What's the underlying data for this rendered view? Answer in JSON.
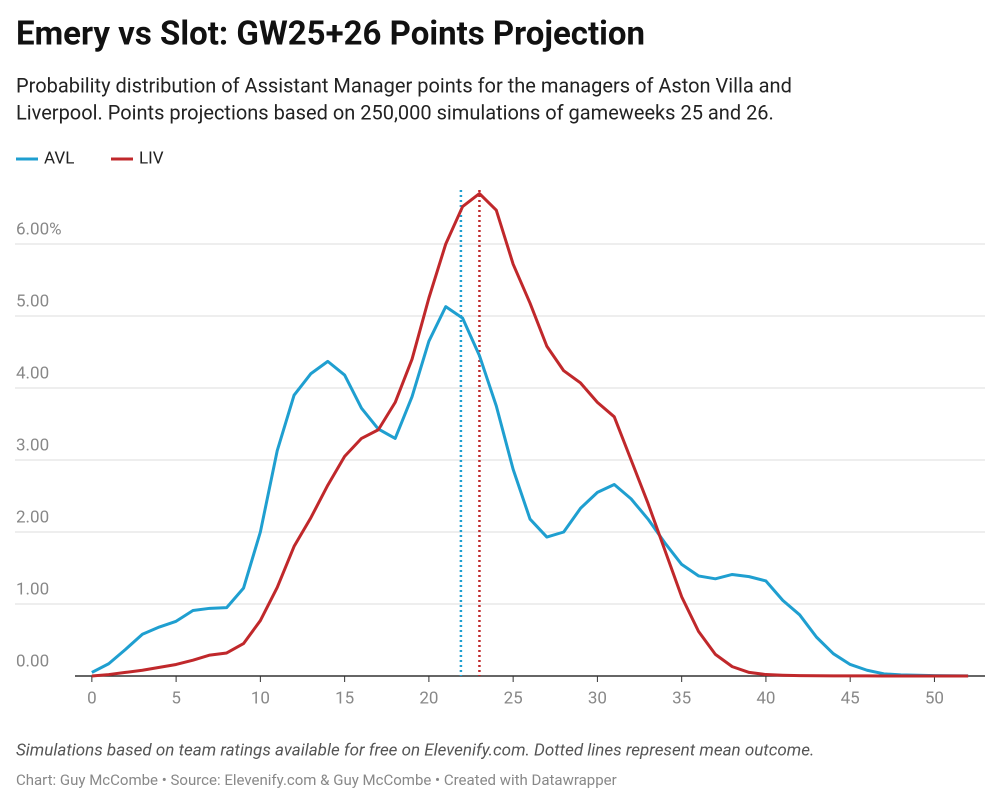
{
  "chart_data": {
    "type": "line",
    "title": "Emery vs Slot: GW25+26 Points Projection",
    "subtitle": [
      "Probability distribution of Assistant Manager points for the managers of Aston Villa and",
      "Liverpool. Points projections based on 250,000 simulations of gameweeks 25 and 26."
    ],
    "notes": "Simulations based on team ratings available for free on Elevenify.com. Dotted lines represent mean outcome.",
    "credits": "Chart: Guy McCombe • Source: Elevenify.com & Guy McCombe • Created with Datawrapper",
    "x": [
      0,
      1,
      2,
      3,
      4,
      5,
      6,
      7,
      8,
      9,
      10,
      11,
      12,
      13,
      14,
      15,
      16,
      17,
      18,
      19,
      20,
      21,
      22,
      23,
      24,
      25,
      26,
      27,
      28,
      29,
      30,
      31,
      32,
      33,
      34,
      35,
      36,
      37,
      38,
      39,
      40,
      41,
      42,
      43,
      44,
      45,
      46,
      47,
      48,
      49,
      50,
      51,
      52
    ],
    "series": [
      {
        "name": "AVL",
        "color": "#1f9fd0",
        "mean": 21.9,
        "values": [
          0.05,
          0.17,
          0.37,
          0.58,
          0.68,
          0.76,
          0.91,
          0.94,
          0.95,
          1.22,
          2.0,
          3.13,
          3.9,
          4.2,
          4.37,
          4.18,
          3.72,
          3.43,
          3.3,
          3.88,
          4.65,
          5.13,
          4.97,
          4.45,
          3.75,
          2.87,
          2.18,
          1.93,
          2.0,
          2.33,
          2.55,
          2.66,
          2.46,
          2.18,
          1.85,
          1.55,
          1.39,
          1.35,
          1.41,
          1.38,
          1.32,
          1.05,
          0.85,
          0.54,
          0.31,
          0.16,
          0.08,
          0.03,
          0.015,
          0.01,
          0.005,
          0.003,
          0.002
        ]
      },
      {
        "name": "LIV",
        "color": "#c0282b",
        "mean": 23.0,
        "values": [
          0.0,
          0.02,
          0.05,
          0.08,
          0.12,
          0.16,
          0.22,
          0.29,
          0.32,
          0.45,
          0.77,
          1.23,
          1.8,
          2.2,
          2.65,
          3.05,
          3.3,
          3.42,
          3.8,
          4.4,
          5.25,
          6.0,
          6.52,
          6.7,
          6.47,
          5.72,
          5.18,
          4.58,
          4.24,
          4.07,
          3.8,
          3.6,
          3.0,
          2.4,
          1.75,
          1.1,
          0.62,
          0.3,
          0.13,
          0.05,
          0.02,
          0.01,
          0.005,
          0.003,
          0.002,
          0.001,
          0.001,
          0.0,
          0.0,
          0.0,
          0.0,
          0.0,
          0.0
        ]
      }
    ],
    "xlim": [
      -1,
      53
    ],
    "ylim": [
      0,
      6.75
    ],
    "xticks": [
      0,
      5,
      10,
      15,
      20,
      25,
      30,
      35,
      40,
      45,
      50
    ],
    "yticks": [
      {
        "value": 0,
        "label": "0.00"
      },
      {
        "value": 1,
        "label": "1.00"
      },
      {
        "value": 2,
        "label": "2.00"
      },
      {
        "value": 3,
        "label": "3.00"
      },
      {
        "value": 4,
        "label": "4.00"
      },
      {
        "value": 5,
        "label": "5.00"
      },
      {
        "value": 6,
        "label": "6.00%"
      }
    ],
    "grid": true
  }
}
